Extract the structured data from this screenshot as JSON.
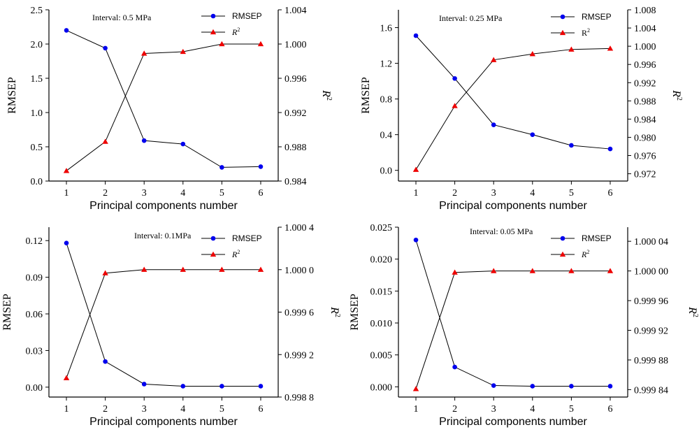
{
  "colors": {
    "rmsep": "#0000ee",
    "r2": "#ee0000",
    "axis": "#000000"
  },
  "chart_data": [
    {
      "type": "line",
      "annotation": "Interval: 0.5 MPa",
      "xlabel": "Principal components number",
      "ylabel": "RMSEP",
      "y2label": "R",
      "y2label_sup": "2",
      "x": [
        1,
        2,
        3,
        4,
        5,
        6
      ],
      "xticks": [
        "1",
        "2",
        "3",
        "4",
        "5",
        "6"
      ],
      "xlim": [
        0.55,
        6.45
      ],
      "ylim": [
        0,
        2.5
      ],
      "yticks": [
        0,
        0.5,
        1.0,
        1.5,
        2.0,
        2.5
      ],
      "yticklabels": [
        "0.0",
        "0.5",
        "1.0",
        "1.5",
        "2.0",
        "2.5"
      ],
      "y2lim": [
        0.984,
        1.004
      ],
      "y2ticks": [
        0.984,
        0.988,
        0.992,
        0.996,
        1.0,
        1.004
      ],
      "y2ticklabels": [
        "0.984",
        "0.988",
        "0.992",
        "0.996",
        "1.000",
        "1.004"
      ],
      "legend_labels": [
        "RMSEP",
        "R",
        "2"
      ],
      "legend_italic": true,
      "legend_position": "top-right",
      "series": [
        {
          "name": "RMSEP",
          "axis": "left",
          "marker": "circle",
          "values": [
            2.2,
            1.94,
            0.59,
            0.54,
            0.2,
            0.21
          ]
        },
        {
          "name": "R2",
          "axis": "right",
          "marker": "triangle",
          "values": [
            0.9852,
            0.9886,
            0.9989,
            0.9991,
            1.0,
            1.0
          ]
        }
      ]
    },
    {
      "type": "line",
      "annotation": "Interval: 0.25 MPa",
      "xlabel": "Principal components number",
      "ylabel": "RMSEP",
      "y2label": "R",
      "y2label_sup": "2",
      "x": [
        1,
        2,
        3,
        4,
        5,
        6
      ],
      "xticks": [
        "1",
        "2",
        "3",
        "4",
        "5",
        "6"
      ],
      "xlim": [
        0.55,
        6.45
      ],
      "ylim": [
        -0.12,
        1.8
      ],
      "yticks": [
        0,
        0.4,
        0.8,
        1.2,
        1.6
      ],
      "yticklabels": [
        "0.0",
        "0.4",
        "0.8",
        "1.2",
        "1.6"
      ],
      "y2lim": [
        0.9704,
        1.008
      ],
      "y2ticks": [
        0.972,
        0.976,
        0.98,
        0.984,
        0.988,
        0.992,
        0.996,
        1.0,
        1.004,
        1.008
      ],
      "y2ticklabels": [
        "0.972",
        "0.976",
        "0.980",
        "0.984",
        "0.988",
        "0.992",
        "0.996",
        "1.000",
        "1.004",
        "1.008"
      ],
      "legend_labels": [
        "RMSEP",
        "R",
        "2"
      ],
      "legend_italic": false,
      "legend_position": "top-right",
      "series": [
        {
          "name": "RMSEP",
          "axis": "left",
          "marker": "circle",
          "values": [
            1.51,
            1.03,
            0.51,
            0.4,
            0.28,
            0.24
          ]
        },
        {
          "name": "R2",
          "axis": "right",
          "marker": "triangle",
          "values": [
            0.9729,
            0.9869,
            0.997,
            0.9983,
            0.9993,
            0.9995
          ]
        }
      ]
    },
    {
      "type": "line",
      "annotation": "Interval: 0.1MPa",
      "xlabel": "Principal components number",
      "ylabel": "RMSEP",
      "y2label": "R",
      "y2label_sup": "2",
      "x": [
        1,
        2,
        3,
        4,
        5,
        6
      ],
      "xticks": [
        "1",
        "2",
        "3",
        "4",
        "5",
        "6"
      ],
      "xlim": [
        0.55,
        6.45
      ],
      "ylim": [
        -0.0081,
        0.131
      ],
      "yticks": [
        0,
        0.03,
        0.06,
        0.09,
        0.12
      ],
      "yticklabels": [
        "0.00",
        "0.03",
        "0.06",
        "0.09",
        "0.12"
      ],
      "y2lim": [
        0.9988,
        1.0004
      ],
      "y2ticks": [
        0.9988,
        0.9992,
        0.9996,
        1.0,
        1.0004
      ],
      "y2ticklabels": [
        "0.998 8",
        "0.999 2",
        "0.999 6",
        "1.000 0",
        "1.000 4"
      ],
      "legend_labels": [
        "RMSEP",
        "R",
        "2"
      ],
      "legend_italic": true,
      "legend_position": "top-right",
      "series": [
        {
          "name": "RMSEP",
          "axis": "left",
          "marker": "circle",
          "values": [
            0.118,
            0.021,
            0.0025,
            0.0008,
            0.0008,
            0.0008
          ]
        },
        {
          "name": "R2",
          "axis": "right",
          "marker": "triangle",
          "values": [
            0.99898,
            0.999967,
            1.0,
            1.0,
            1.0,
            1.0
          ]
        }
      ]
    },
    {
      "type": "line",
      "annotation": "Interval: 0.05 MPa",
      "xlabel": "Principal components number",
      "ylabel": "RMSEP",
      "y2label": "R",
      "y2label_sup": "2",
      "x": [
        1,
        2,
        3,
        4,
        5,
        6
      ],
      "xticks": [
        "1",
        "2",
        "3",
        "4",
        "5",
        "6"
      ],
      "xlim": [
        0.55,
        6.45
      ],
      "ylim": [
        -0.0016,
        0.025
      ],
      "yticks": [
        0,
        0.005,
        0.01,
        0.015,
        0.02,
        0.025
      ],
      "yticklabels": [
        "0.000",
        "0.005",
        "0.010",
        "0.015",
        "0.020",
        "0.025"
      ],
      "y2lim": [
        0.99983,
        1.000059
      ],
      "y2ticks": [
        0.99984,
        0.99988,
        0.99992,
        0.99996,
        1.0,
        1.00004
      ],
      "y2ticklabels": [
        "0.999 84",
        "0.999 88",
        "0.999 92",
        "0.999 96",
        "1.000 00",
        "1.000 04"
      ],
      "legend_labels": [
        "RMSEP",
        "R",
        "2"
      ],
      "legend_italic": true,
      "legend_position": "top-right",
      "series": [
        {
          "name": "RMSEP",
          "axis": "left",
          "marker": "circle",
          "values": [
            0.023,
            0.0031,
            0.0002,
            0.0001,
            0.0001,
            0.0001
          ]
        },
        {
          "name": "R2",
          "axis": "right",
          "marker": "triangle",
          "values": [
            0.999841,
            0.999998,
            1.0,
            1.0,
            1.0,
            1.0
          ]
        }
      ]
    }
  ]
}
